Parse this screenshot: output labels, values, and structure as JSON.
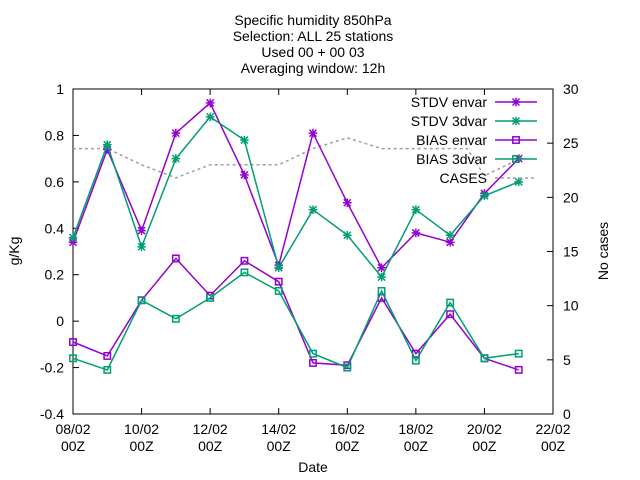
{
  "chart_data": {
    "type": "line",
    "title_lines": [
      "Specific humidity 850hPa",
      "Selection: ALL      25 stations",
      "Used 00 + 00 03",
      "Averaging window: 12h"
    ],
    "xlabel": "Date",
    "ylabel": "g/Kg",
    "y2label": "No cases",
    "ylim": [
      -0.4,
      1.0
    ],
    "y2lim": [
      0,
      30
    ],
    "xlim": [
      0,
      14
    ],
    "grid": false,
    "legend_position": "top-right",
    "x_ticks": [
      {
        "x": 0,
        "line1": "08/02",
        "line2": "00Z"
      },
      {
        "x": 2,
        "line1": "10/02",
        "line2": "00Z"
      },
      {
        "x": 4,
        "line1": "12/02",
        "line2": "00Z"
      },
      {
        "x": 6,
        "line1": "14/02",
        "line2": "00Z"
      },
      {
        "x": 8,
        "line1": "16/02",
        "line2": "00Z"
      },
      {
        "x": 10,
        "line1": "18/02",
        "line2": "00Z"
      },
      {
        "x": 12,
        "line1": "20/02",
        "line2": "00Z"
      },
      {
        "x": 14,
        "line1": "22/02",
        "line2": "00Z"
      }
    ],
    "y_ticks": [
      "-0.4",
      "-0.2",
      "0",
      "0.2",
      "0.4",
      "0.6",
      "0.8",
      "1"
    ],
    "y2_ticks": [
      "0",
      "5",
      "10",
      "15",
      "20",
      "25",
      "30"
    ],
    "x": [
      0,
      1,
      2,
      3,
      4,
      5,
      6,
      7,
      8,
      9,
      10,
      11,
      12,
      13
    ],
    "series": [
      {
        "name": "STDV envar",
        "axis": "left",
        "color": "#9400d3",
        "marker": "star",
        "values": [
          0.34,
          0.74,
          0.39,
          0.81,
          0.94,
          0.63,
          0.24,
          0.81,
          0.51,
          0.23,
          0.38,
          0.34,
          0.55,
          0.7
        ]
      },
      {
        "name": "STDV 3dvar",
        "axis": "left",
        "color": "#009e73",
        "marker": "star",
        "values": [
          0.36,
          0.76,
          0.32,
          0.7,
          0.88,
          0.78,
          0.23,
          0.48,
          0.37,
          0.19,
          0.48,
          0.37,
          0.54,
          0.6
        ]
      },
      {
        "name": "BIAS envar",
        "axis": "left",
        "color": "#9400d3",
        "marker": "square",
        "values": [
          -0.09,
          -0.15,
          0.09,
          0.27,
          0.11,
          0.26,
          0.17,
          -0.18,
          -0.19,
          0.1,
          -0.14,
          0.03,
          -0.16,
          -0.21
        ]
      },
      {
        "name": "BIAS 3dvar",
        "axis": "left",
        "color": "#009e73",
        "marker": "square",
        "values": [
          -0.16,
          -0.21,
          0.09,
          0.01,
          0.1,
          0.21,
          0.13,
          -0.14,
          -0.2,
          0.13,
          -0.17,
          0.08,
          -0.16,
          -0.14
        ]
      },
      {
        "name": "CASES",
        "axis": "right",
        "color": "#a0a0a0",
        "dashed": true,
        "x": [
          0,
          1,
          2,
          3,
          4,
          5,
          6,
          7,
          8,
          9,
          10,
          11,
          11.5,
          12,
          13
        ],
        "values": [
          24.5,
          24.5,
          23,
          21.8,
          23,
          23,
          23,
          24.5,
          25.5,
          24.5,
          24.5,
          24.5,
          24.5,
          22,
          23.5
        ]
      }
    ]
  }
}
